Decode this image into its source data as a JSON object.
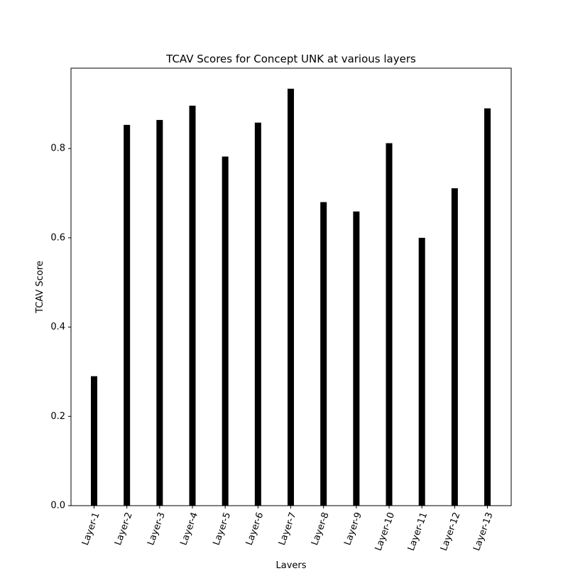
{
  "chart_data": {
    "type": "bar",
    "title": "TCAV Scores for Concept UNK at various layers",
    "xlabel": "Layers",
    "ylabel": "TCAV Score",
    "categories": [
      "Layer-1",
      "Layer-2",
      "Layer-3",
      "Layer-4",
      "Layer-5",
      "Layer-6",
      "Layer-7",
      "Layer-8",
      "Layer-9",
      "Layer-10",
      "Layer-11",
      "Layer-12",
      "Layer-13"
    ],
    "values": [
      0.29,
      0.853,
      0.864,
      0.896,
      0.782,
      0.858,
      0.934,
      0.68,
      0.659,
      0.812,
      0.6,
      0.711,
      0.89
    ],
    "ylim": [
      0,
      0.98
    ],
    "yticks": [
      0.0,
      0.2,
      0.4,
      0.6,
      0.8
    ],
    "ytick_labels": [
      "0.0",
      "0.2",
      "0.4",
      "0.6",
      "0.8"
    ],
    "grid": false,
    "legend": "none",
    "bar_color": "#000000",
    "xtick_rotation_deg": -70
  }
}
